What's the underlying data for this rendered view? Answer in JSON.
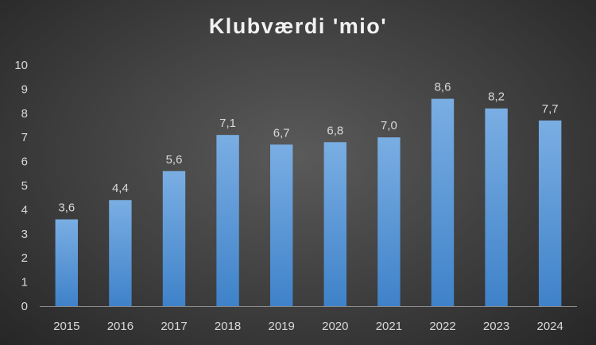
{
  "chart_data": {
    "type": "bar",
    "title": "Klubværdi 'mio'",
    "xlabel": "",
    "ylabel": "",
    "categories": [
      "2015",
      "2016",
      "2017",
      "2018",
      "2019",
      "2020",
      "2021",
      "2022",
      "2023",
      "2024"
    ],
    "values": [
      3.6,
      4.4,
      5.6,
      7.1,
      6.7,
      6.8,
      7.0,
      8.6,
      8.2,
      7.7
    ],
    "data_labels": [
      "3,6",
      "4,4",
      "5,6",
      "7,1",
      "6,7",
      "6,8",
      "7,0",
      "8,6",
      "8,2",
      "7,7"
    ],
    "ylim": [
      0,
      10
    ],
    "yticks": [
      "0",
      "1",
      "2",
      "3",
      "4",
      "5",
      "6",
      "7",
      "8",
      "9",
      "10"
    ],
    "grid": false,
    "legend": "none",
    "colors": {
      "bar_top": "#7aaee3",
      "bar_bottom": "#3f82c9",
      "text": "#d9d9d9",
      "axis": "#8c8c8c"
    }
  }
}
